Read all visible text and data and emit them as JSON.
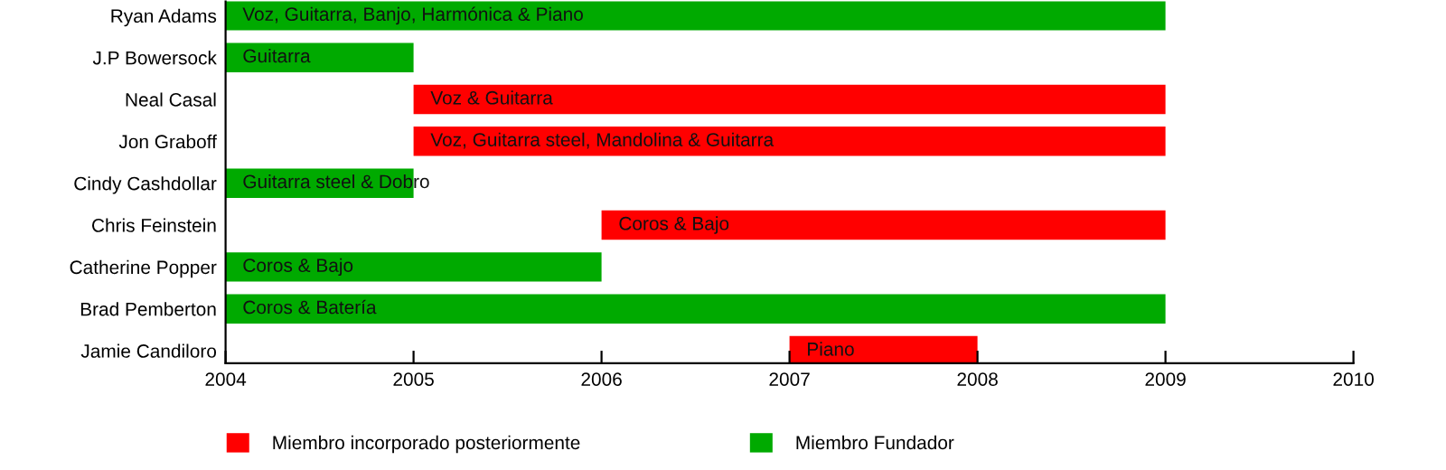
{
  "chart_data": {
    "type": "bar",
    "orientation": "horizontal",
    "categories": [
      "Ryan Adams",
      "J.P Bowersock",
      "Neal Casal",
      "Jon Graboff",
      "Cindy Cashdollar",
      "Chris Feinstein",
      "Catherine Popper",
      "Brad Pemberton",
      "Jamie Candiloro"
    ],
    "series": [
      {
        "name": "Miembro incorporado posteriormente",
        "color": "#ff0000",
        "base": [
          null,
          null,
          2005,
          2005,
          null,
          2006,
          null,
          null,
          2007
        ],
        "values": [
          null,
          null,
          4,
          4,
          null,
          3,
          null,
          null,
          1
        ],
        "value_labels": [
          null,
          null,
          "Voz & Guitarra",
          "Voz, Guitarra steel, Mandolina & Guitarra",
          null,
          "Coros & Bajo",
          null,
          null,
          "Piano"
        ]
      },
      {
        "name": "Miembro Fundador",
        "color": "#00aa00",
        "base": [
          2004,
          2004,
          null,
          null,
          2004,
          null,
          2004,
          2004,
          null
        ],
        "values": [
          5,
          1,
          null,
          null,
          1,
          null,
          2,
          5,
          null
        ],
        "value_labels": [
          "Voz, Guitarra, Banjo, Harmónica & Piano",
          "Guitarra",
          null,
          null,
          "Guitarra steel & Dobro",
          null,
          "Coros & Bajo",
          "Coros & Batería",
          null
        ]
      }
    ],
    "xlim": [
      2004,
      2010
    ],
    "xticks": [
      2004,
      2005,
      2006,
      2007,
      2008,
      2009,
      2010
    ],
    "grid": false,
    "legend": "bottom"
  }
}
